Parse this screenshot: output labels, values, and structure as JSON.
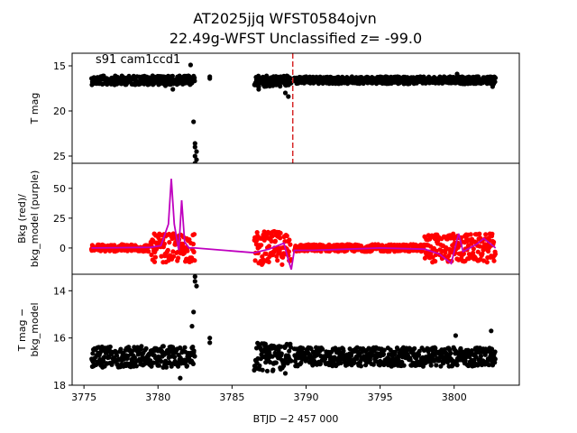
{
  "figure": {
    "title_line1": "AT2025jjq  WFST0584ojvn",
    "title_line2": "22.49g-WFST Unclassified z= -99.0",
    "annotation": "s91 cam1ccd1",
    "xlabel": "BTJD −2 457 000"
  },
  "colors": {
    "points": "#000000",
    "bkg": "#ff0000",
    "bkg_model": "#bf00bf",
    "vline": "#d62728"
  },
  "chart_data": [
    {
      "type": "scatter",
      "panel": "top",
      "ylabel": "T mag",
      "xlim": [
        3774.2,
        3804.4
      ],
      "ylim": [
        25.8,
        13.6
      ],
      "y_inverted": true,
      "yticks": [
        15,
        20,
        25
      ],
      "vline_x": 3789.1,
      "series": [
        {
          "segments": [
            {
              "x": [
                3775.5,
                3782.5
              ],
              "y_center": 16.6,
              "spread": 0.5
            },
            {
              "x": [
                3786.5,
                3789.0
              ],
              "y_center": 16.7,
              "spread": 0.6
            },
            {
              "x": [
                3789.2,
                3802.8
              ],
              "y_center": 16.6,
              "spread": 0.4
            }
          ]
        },
        {
          "outliers": [
            [
              3782.5,
              23.6
            ],
            [
              3782.5,
              24.0
            ],
            [
              3782.6,
              24.5
            ],
            [
              3782.5,
              25.0
            ],
            [
              3782.6,
              25.4
            ],
            [
              3782.5,
              25.8
            ],
            [
              3782.4,
              21.2
            ],
            [
              3783.5,
              16.2
            ],
            [
              3783.5,
              16.4
            ],
            [
              3786.8,
              17.6
            ],
            [
              3788.6,
              18.0
            ],
            [
              3788.8,
              18.4
            ],
            [
              3780.5,
              17.2
            ],
            [
              3781.0,
              17.6
            ],
            [
              3782.2,
              14.9
            ],
            [
              3800.2,
              15.9
            ],
            [
              3802.6,
              17.3
            ]
          ]
        }
      ]
    },
    {
      "type": "scatter",
      "panel": "middle",
      "ylabel": "Bkg (red)/\nbkg_model (purple)",
      "xlim": [
        3774.2,
        3804.4
      ],
      "ylim": [
        -22,
        71
      ],
      "yticks": [
        0,
        25,
        50
      ],
      "series": [
        {
          "name": "Bkg",
          "segments": [
            {
              "x": [
                3775.5,
                3779.5
              ],
              "y_center": 0,
              "spread": 3
            },
            {
              "x": [
                3779.5,
                3782.5
              ],
              "y_center": 0,
              "spread": 12
            },
            {
              "x": [
                3786.5,
                3789.0
              ],
              "y_center": 0,
              "spread": 14
            },
            {
              "x": [
                3789.2,
                3798.0
              ],
              "y_center": 0,
              "spread": 3
            },
            {
              "x": [
                3798.0,
                3802.8
              ],
              "y_center": 0,
              "spread": 12
            }
          ]
        },
        {
          "name": "bkg_model",
          "points": [
            [
              3775.5,
              0
            ],
            [
              3779.5,
              0.5
            ],
            [
              3780.2,
              2
            ],
            [
              3780.7,
              20
            ],
            [
              3780.9,
              58
            ],
            [
              3781.1,
              20
            ],
            [
              3781.4,
              -2
            ],
            [
              3781.6,
              40
            ],
            [
              3781.8,
              5
            ],
            [
              3782.1,
              0
            ],
            [
              3782.5,
              0
            ],
            [
              3786.5,
              -4
            ],
            [
              3787.5,
              -1
            ],
            [
              3788.5,
              4
            ],
            [
              3788.8,
              -10
            ],
            [
              3789.0,
              -18
            ],
            [
              3789.2,
              -2
            ],
            [
              3790.5,
              -2
            ],
            [
              3795.0,
              0
            ],
            [
              3798.0,
              -1
            ],
            [
              3799.0,
              -5
            ],
            [
              3799.8,
              -13
            ],
            [
              3800.3,
              12
            ],
            [
              3800.6,
              -3
            ],
            [
              3801.5,
              3
            ],
            [
              3802.0,
              8
            ],
            [
              3802.8,
              0
            ]
          ]
        }
      ]
    },
    {
      "type": "scatter",
      "panel": "bottom",
      "ylabel": "T mag −\nbkg_model",
      "xlim": [
        3774.2,
        3804.4
      ],
      "ylim": [
        18.0,
        13.3
      ],
      "y_inverted": true,
      "yticks": [
        14,
        16,
        18
      ],
      "xticks": [
        3775,
        3780,
        3785,
        3790,
        3795,
        3800
      ],
      "series": [
        {
          "segments": [
            {
              "x": [
                3775.5,
                3782.5
              ],
              "y_center": 16.8,
              "spread": 0.45
            },
            {
              "x": [
                3786.5,
                3789.0
              ],
              "y_center": 16.8,
              "spread": 0.6
            },
            {
              "x": [
                3789.2,
                3802.8
              ],
              "y_center": 16.8,
              "spread": 0.4
            }
          ]
        },
        {
          "outliers": [
            [
              3782.5,
              13.4
            ],
            [
              3782.5,
              13.6
            ],
            [
              3782.6,
              13.8
            ],
            [
              3782.4,
              14.9
            ],
            [
              3782.3,
              15.5
            ],
            [
              3783.5,
              16.0
            ],
            [
              3783.5,
              16.2
            ],
            [
              3781.5,
              17.7
            ],
            [
              3788.6,
              17.5
            ],
            [
              3800.1,
              15.9
            ],
            [
              3802.5,
              15.7
            ]
          ]
        }
      ]
    }
  ]
}
